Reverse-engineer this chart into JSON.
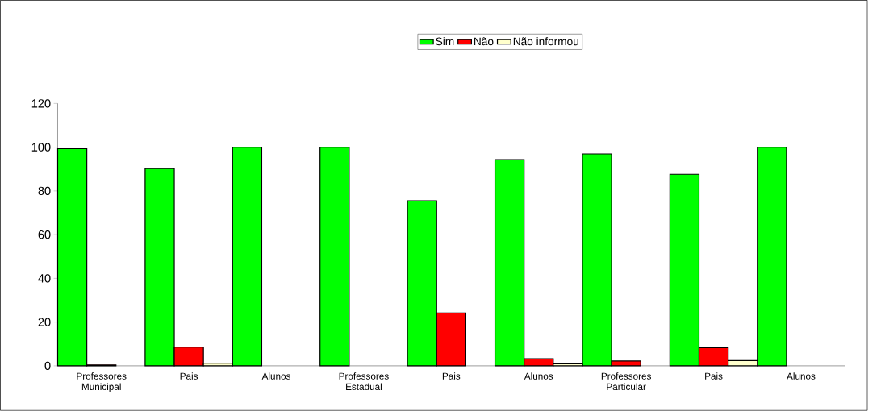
{
  "chart_data": {
    "type": "bar",
    "categories": [
      "Professores Municipal",
      "Pais",
      "Alunos",
      "Professores Estadual",
      "Pais",
      "Alunos",
      "Professores Particular",
      "Pais",
      "Alunos"
    ],
    "series": [
      {
        "name": "Sim",
        "color": "#00ff00",
        "values": [
          99.3,
          90.2,
          100,
          100,
          75.5,
          94.3,
          96.9,
          87.6,
          100
        ]
      },
      {
        "name": "Não",
        "color": "#ff0000",
        "values": [
          0.4,
          8.6,
          null,
          null,
          24.2,
          3.2,
          2.2,
          8.3,
          null
        ]
      },
      {
        "name": "Não informou",
        "color": "#ffffcc",
        "values": [
          null,
          1.2,
          null,
          null,
          null,
          0.9,
          null,
          2.4,
          null
        ]
      }
    ],
    "ylim": [
      0,
      120
    ],
    "yticks": [
      0,
      20,
      40,
      60,
      80,
      100,
      120
    ],
    "legend": "top"
  }
}
